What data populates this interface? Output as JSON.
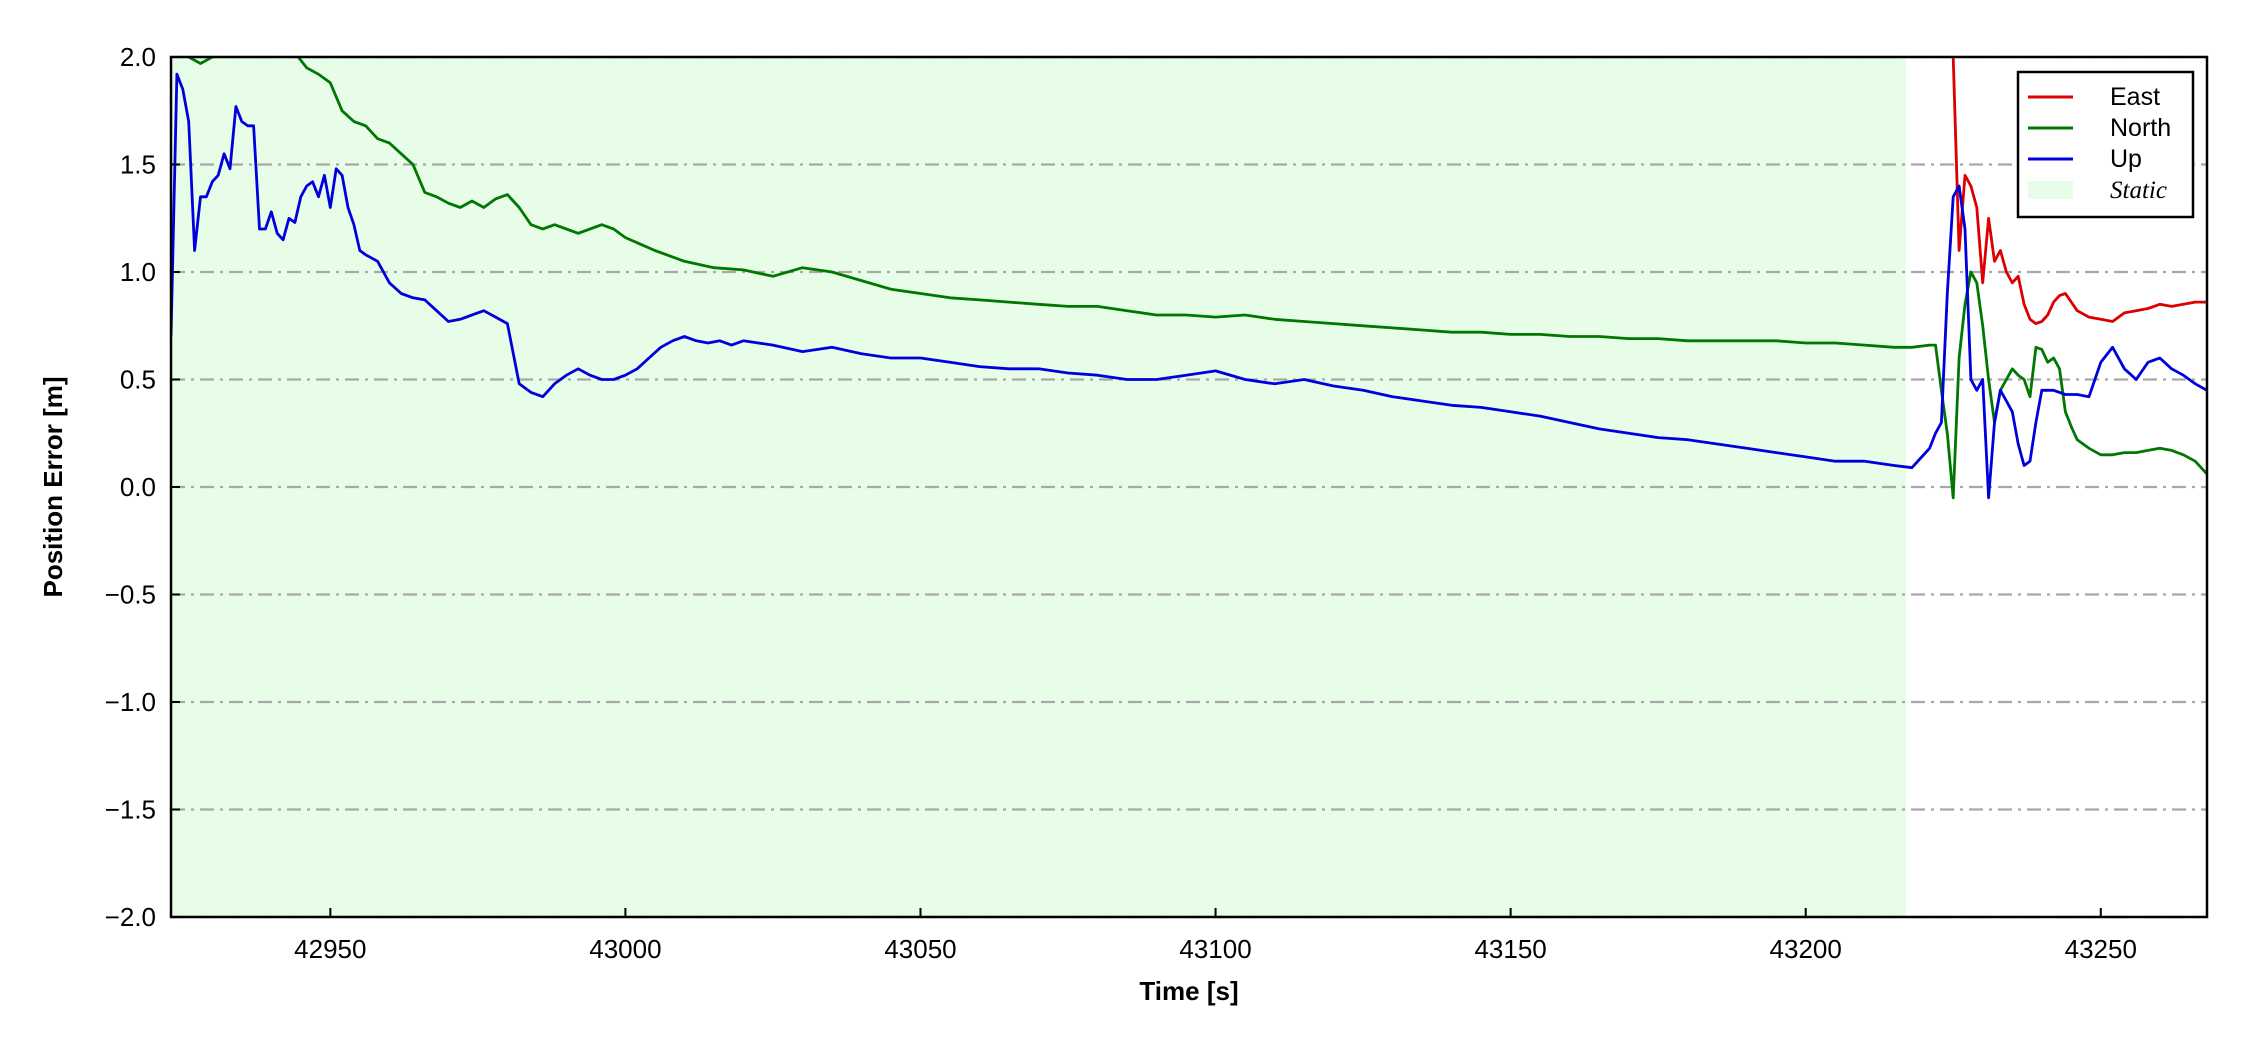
{
  "chart_data": {
    "type": "line",
    "title": "",
    "xlabel": "Time [s]",
    "ylabel": "Position Error [m]",
    "xlim": [
      42923,
      43268
    ],
    "ylim": [
      -2.0,
      2.0
    ],
    "xticks": [
      42950,
      43000,
      43050,
      43100,
      43150,
      43200,
      43250
    ],
    "xtick_labels": [
      "42950",
      "43000",
      "43050",
      "43100",
      "43150",
      "43200",
      "43250"
    ],
    "yticks": [
      2.0,
      1.5,
      1.0,
      0.5,
      0.0,
      -0.5,
      -1.0,
      -1.5,
      -2.0
    ],
    "ytick_labels": [
      "2.0",
      "1.5",
      "1.0",
      "0.5",
      "0.0",
      "−0.5",
      "−1.0",
      "−1.5",
      "−2.0"
    ],
    "grid": "horizontal dash-dot",
    "legend_position": "top-right",
    "static_region": {
      "label": "Static",
      "x_start": 42923,
      "x_end": 43217,
      "color": "#e8fde8"
    },
    "series": [
      {
        "name": "East",
        "color": "#dd0000",
        "x": [
          43225,
          43226,
          43227,
          43228,
          43229,
          43230,
          43231,
          43232,
          43233,
          43234,
          43235,
          43236,
          43237,
          43238,
          43239,
          43240,
          43241,
          43242,
          43243,
          43244,
          43245,
          43246,
          43248,
          43250,
          43252,
          43254,
          43256,
          43258,
          43260,
          43262,
          43264,
          43266,
          43268
        ],
        "y": [
          2.0,
          1.1,
          1.45,
          1.4,
          1.3,
          0.95,
          1.25,
          1.05,
          1.1,
          1.0,
          0.95,
          0.98,
          0.85,
          0.78,
          0.76,
          0.77,
          0.8,
          0.86,
          0.89,
          0.9,
          0.86,
          0.82,
          0.79,
          0.78,
          0.77,
          0.81,
          0.82,
          0.83,
          0.85,
          0.84,
          0.85,
          0.86,
          0.86
        ]
      },
      {
        "name": "North",
        "color": "#007700",
        "x": [
          42926,
          42928,
          42930,
          42935,
          42940,
          42944,
          42946,
          42948,
          42950,
          42952,
          42954,
          42956,
          42958,
          42960,
          42962,
          42964,
          42966,
          42968,
          42970,
          42972,
          42974,
          42976,
          42978,
          42980,
          42982,
          42984,
          42986,
          42988,
          42990,
          42992,
          42994,
          42996,
          42998,
          43000,
          43005,
          43010,
          43015,
          43020,
          43025,
          43030,
          43035,
          43040,
          43045,
          43050,
          43055,
          43060,
          43065,
          43070,
          43075,
          43080,
          43085,
          43090,
          43095,
          43100,
          43105,
          43110,
          43115,
          43120,
          43125,
          43130,
          43135,
          43140,
          43145,
          43150,
          43155,
          43160,
          43165,
          43170,
          43175,
          43180,
          43185,
          43190,
          43195,
          43200,
          43205,
          43210,
          43215,
          43218,
          43221,
          43222,
          43223,
          43224,
          43225,
          43226,
          43227,
          43228,
          43229,
          43230,
          43231,
          43232,
          43233,
          43234,
          43235,
          43236,
          43237,
          43238,
          43239,
          43240,
          43241,
          43242,
          43243,
          43244,
          43245,
          43246,
          43248,
          43250,
          43252,
          43254,
          43256,
          43258,
          43260,
          43262,
          43264,
          43266,
          43268
        ],
        "y": [
          2.0,
          1.97,
          2.0,
          2.03,
          2.05,
          2.02,
          1.95,
          1.92,
          1.88,
          1.75,
          1.7,
          1.68,
          1.62,
          1.6,
          1.55,
          1.5,
          1.37,
          1.35,
          1.32,
          1.3,
          1.33,
          1.3,
          1.34,
          1.36,
          1.3,
          1.22,
          1.2,
          1.22,
          1.2,
          1.18,
          1.2,
          1.22,
          1.2,
          1.16,
          1.1,
          1.05,
          1.02,
          1.01,
          0.98,
          1.02,
          1.0,
          0.96,
          0.92,
          0.9,
          0.88,
          0.87,
          0.86,
          0.85,
          0.84,
          0.84,
          0.82,
          0.8,
          0.8,
          0.79,
          0.8,
          0.78,
          0.77,
          0.76,
          0.75,
          0.74,
          0.73,
          0.72,
          0.72,
          0.71,
          0.71,
          0.7,
          0.7,
          0.69,
          0.69,
          0.68,
          0.68,
          0.68,
          0.68,
          0.67,
          0.67,
          0.66,
          0.65,
          0.65,
          0.66,
          0.66,
          0.45,
          0.25,
          -0.05,
          0.6,
          0.85,
          1.0,
          0.95,
          0.75,
          0.5,
          0.3,
          0.45,
          0.5,
          0.55,
          0.52,
          0.5,
          0.42,
          0.65,
          0.64,
          0.58,
          0.6,
          0.55,
          0.35,
          0.28,
          0.22,
          0.18,
          0.15,
          0.15,
          0.16,
          0.16,
          0.17,
          0.18,
          0.17,
          0.15,
          0.12,
          0.06
        ]
      },
      {
        "name": "Up",
        "color": "#0000dd",
        "x": [
          42923,
          42924,
          42925,
          42926,
          42927,
          42928,
          42929,
          42930,
          42931,
          42932,
          42933,
          42934,
          42935,
          42936,
          42937,
          42938,
          42939,
          42940,
          42941,
          42942,
          42943,
          42944,
          42945,
          42946,
          42947,
          42948,
          42949,
          42950,
          42951,
          42952,
          42953,
          42954,
          42955,
          42956,
          42958,
          42960,
          42962,
          42964,
          42966,
          42968,
          42970,
          42972,
          42974,
          42976,
          42978,
          42980,
          42982,
          42984,
          42986,
          42988,
          42990,
          42992,
          42994,
          42996,
          42998,
          43000,
          43002,
          43004,
          43006,
          43008,
          43010,
          43012,
          43014,
          43016,
          43018,
          43020,
          43025,
          43030,
          43035,
          43040,
          43045,
          43050,
          43055,
          43060,
          43065,
          43070,
          43075,
          43080,
          43085,
          43090,
          43095,
          43100,
          43105,
          43110,
          43115,
          43120,
          43125,
          43130,
          43135,
          43140,
          43145,
          43150,
          43155,
          43160,
          43165,
          43170,
          43175,
          43180,
          43185,
          43190,
          43195,
          43200,
          43205,
          43210,
          43215,
          43218,
          43221,
          43222,
          43223,
          43224,
          43225,
          43226,
          43227,
          43228,
          43229,
          43230,
          43231,
          43232,
          43233,
          43234,
          43235,
          43236,
          43237,
          43238,
          43239,
          43240,
          43242,
          43244,
          43246,
          43248,
          43250,
          43252,
          43254,
          43256,
          43258,
          43260,
          43262,
          43264,
          43266,
          43268
        ],
        "y": [
          0.7,
          1.92,
          1.85,
          1.7,
          1.1,
          1.35,
          1.35,
          1.42,
          1.45,
          1.55,
          1.48,
          1.77,
          1.7,
          1.68,
          1.68,
          1.2,
          1.2,
          1.28,
          1.18,
          1.15,
          1.25,
          1.23,
          1.35,
          1.4,
          1.42,
          1.35,
          1.45,
          1.3,
          1.48,
          1.45,
          1.3,
          1.22,
          1.1,
          1.08,
          1.05,
          0.95,
          0.9,
          0.88,
          0.87,
          0.82,
          0.77,
          0.78,
          0.8,
          0.82,
          0.79,
          0.76,
          0.48,
          0.44,
          0.42,
          0.48,
          0.52,
          0.55,
          0.52,
          0.5,
          0.5,
          0.52,
          0.55,
          0.6,
          0.65,
          0.68,
          0.7,
          0.68,
          0.67,
          0.68,
          0.66,
          0.68,
          0.66,
          0.63,
          0.65,
          0.62,
          0.6,
          0.6,
          0.58,
          0.56,
          0.55,
          0.55,
          0.53,
          0.52,
          0.5,
          0.5,
          0.52,
          0.54,
          0.5,
          0.48,
          0.5,
          0.47,
          0.45,
          0.42,
          0.4,
          0.38,
          0.37,
          0.35,
          0.33,
          0.3,
          0.27,
          0.25,
          0.23,
          0.22,
          0.2,
          0.18,
          0.16,
          0.14,
          0.12,
          0.12,
          0.1,
          0.09,
          0.18,
          0.25,
          0.3,
          0.9,
          1.35,
          1.4,
          1.2,
          0.5,
          0.45,
          0.5,
          -0.05,
          0.3,
          0.45,
          0.4,
          0.35,
          0.2,
          0.1,
          0.12,
          0.3,
          0.45,
          0.45,
          0.43,
          0.43,
          0.42,
          0.58,
          0.65,
          0.55,
          0.5,
          0.58,
          0.6,
          0.55,
          0.52,
          0.48,
          0.45
        ]
      }
    ]
  }
}
